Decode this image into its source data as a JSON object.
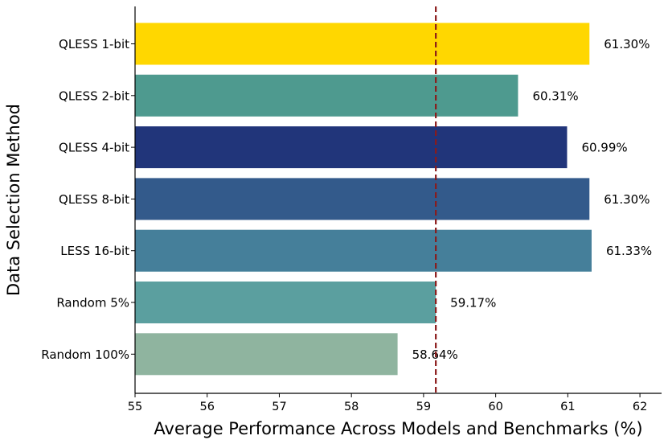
{
  "chart_data": {
    "type": "bar",
    "orientation": "horizontal",
    "categories": [
      "QLESS 1-bit",
      "QLESS 2-bit",
      "QLESS 4-bit",
      "QLESS 8-bit",
      "LESS 16-bit",
      "Random 5%",
      "Random 100%"
    ],
    "values": [
      61.3,
      60.31,
      60.99,
      61.3,
      61.33,
      59.17,
      58.64
    ],
    "value_labels": [
      "61.30%",
      "60.31%",
      "60.99%",
      "61.30%",
      "61.33%",
      "59.17%",
      "58.64%"
    ],
    "colors": [
      "#ffd700",
      "#4e9a8f",
      "#21357a",
      "#335a8b",
      "#457f9a",
      "#5b9f9f",
      "#8fb49f"
    ],
    "xlabel": "Average Performance Across Models and Benchmarks (%)",
    "ylabel": "Data Selection Method",
    "xlim": [
      55,
      62.3
    ],
    "xticks": [
      55,
      56,
      57,
      58,
      59,
      60,
      61,
      62
    ],
    "reference_line": {
      "x": 59.17,
      "style": "dashed",
      "color": "#8b1a1a"
    },
    "grid": false,
    "legend": "none"
  }
}
